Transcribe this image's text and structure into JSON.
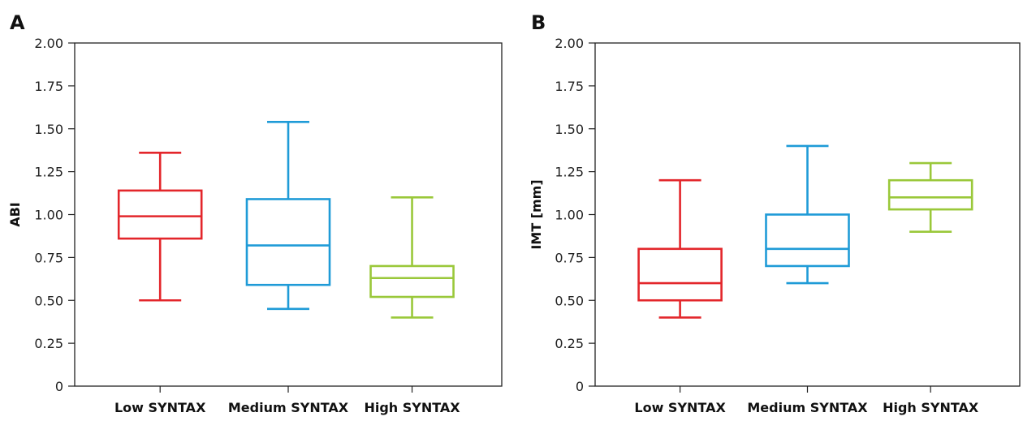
{
  "chart_data": [
    {
      "type": "box",
      "panel_label": "A",
      "ylabel": "ABI",
      "xlabel": "",
      "ylim": [
        0,
        2.0
      ],
      "yticks": [
        "0",
        "0.25",
        "0.50",
        "0.75",
        "1.00",
        "1.25",
        "1.50",
        "1.75",
        "2.00"
      ],
      "categories": [
        "Low SYNTAX",
        "Medium SYNTAX",
        "High SYNTAX"
      ],
      "colors": [
        "#e3262b",
        "#1f9bd7",
        "#9ac83a"
      ],
      "boxes": [
        {
          "min": 0.5,
          "q1": 0.86,
          "median": 0.99,
          "q3": 1.14,
          "max": 1.36
        },
        {
          "min": 0.45,
          "q1": 0.59,
          "median": 0.82,
          "q3": 1.09,
          "max": 1.54
        },
        {
          "min": 0.4,
          "q1": 0.52,
          "median": 0.63,
          "q3": 0.7,
          "max": 1.1
        }
      ]
    },
    {
      "type": "box",
      "panel_label": "B",
      "ylabel": "IMT [mm]",
      "xlabel": "",
      "ylim": [
        0,
        2.0
      ],
      "yticks": [
        "0",
        "0.25",
        "0.50",
        "0.75",
        "1.00",
        "1.25",
        "1.50",
        "1.75",
        "2.00"
      ],
      "categories": [
        "Low SYNTAX",
        "Medium SYNTAX",
        "High SYNTAX"
      ],
      "colors": [
        "#e3262b",
        "#1f9bd7",
        "#9ac83a"
      ],
      "boxes": [
        {
          "min": 0.4,
          "q1": 0.5,
          "median": 0.6,
          "q3": 0.8,
          "max": 1.2
        },
        {
          "min": 0.6,
          "q1": 0.7,
          "median": 0.8,
          "q3": 1.0,
          "max": 1.4
        },
        {
          "min": 0.9,
          "q1": 1.03,
          "median": 1.1,
          "q3": 1.2,
          "max": 1.3
        }
      ]
    }
  ]
}
